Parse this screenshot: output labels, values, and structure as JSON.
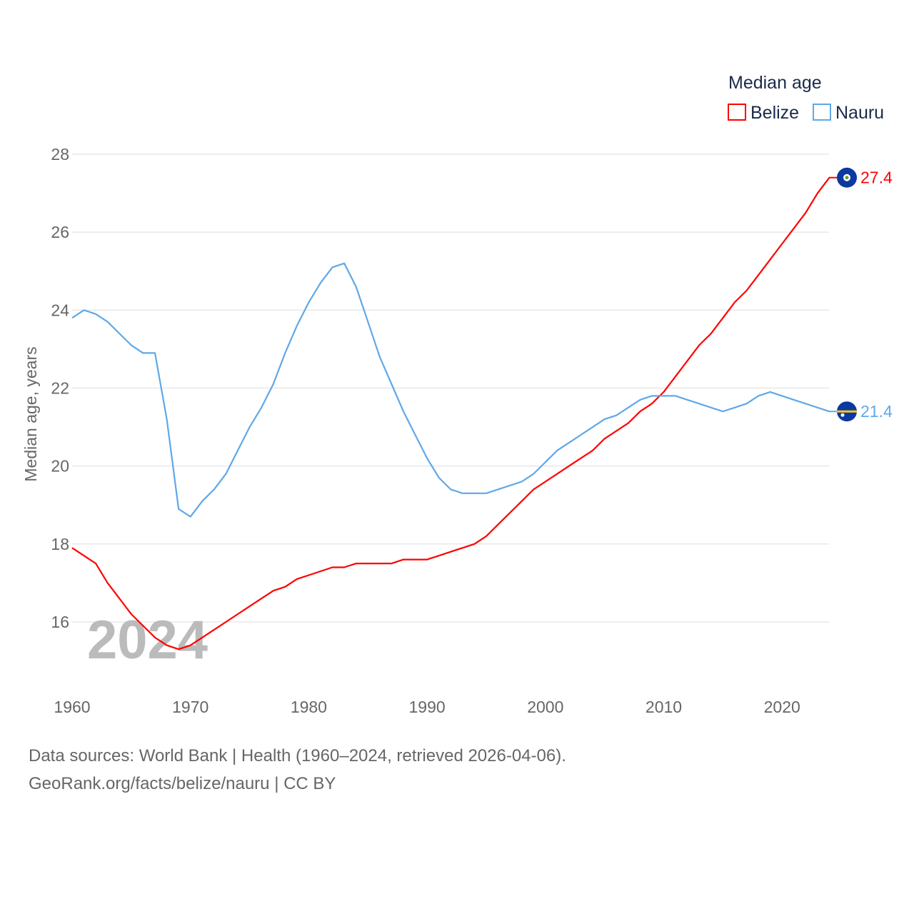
{
  "chart_data": {
    "type": "line",
    "title": "",
    "legend_title": "Median age",
    "legend_placement": "top-right",
    "xlabel": "",
    "ylabel": "Median age, years",
    "xlim": [
      1960,
      2024
    ],
    "ylim": [
      15,
      28
    ],
    "x_ticks": [
      1960,
      1970,
      1980,
      1990,
      2000,
      2010,
      2020
    ],
    "y_ticks": [
      16,
      18,
      20,
      22,
      24,
      26,
      28
    ],
    "grid": true,
    "watermark_year": "2024",
    "x": [
      1960,
      1961,
      1962,
      1963,
      1964,
      1965,
      1966,
      1967,
      1968,
      1969,
      1970,
      1971,
      1972,
      1973,
      1974,
      1975,
      1976,
      1977,
      1978,
      1979,
      1980,
      1981,
      1982,
      1983,
      1984,
      1985,
      1986,
      1987,
      1988,
      1989,
      1990,
      1991,
      1992,
      1993,
      1994,
      1995,
      1996,
      1997,
      1998,
      1999,
      2000,
      2001,
      2002,
      2003,
      2004,
      2005,
      2006,
      2007,
      2008,
      2009,
      2010,
      2011,
      2012,
      2013,
      2014,
      2015,
      2016,
      2017,
      2018,
      2019,
      2020,
      2021,
      2022,
      2023,
      2024
    ],
    "series": [
      {
        "name": "Belize",
        "color": "#ff0000",
        "end_label": "27.4",
        "values": [
          17.9,
          17.7,
          17.5,
          17.0,
          16.6,
          16.2,
          15.9,
          15.6,
          15.4,
          15.3,
          15.4,
          15.6,
          15.8,
          16.0,
          16.2,
          16.4,
          16.6,
          16.8,
          16.9,
          17.1,
          17.2,
          17.3,
          17.4,
          17.4,
          17.5,
          17.5,
          17.5,
          17.5,
          17.6,
          17.6,
          17.6,
          17.7,
          17.8,
          17.9,
          18.0,
          18.2,
          18.5,
          18.8,
          19.1,
          19.4,
          19.6,
          19.8,
          20.0,
          20.2,
          20.4,
          20.7,
          20.9,
          21.1,
          21.4,
          21.6,
          21.9,
          22.3,
          22.7,
          23.1,
          23.4,
          23.8,
          24.2,
          24.5,
          24.9,
          25.3,
          25.7,
          26.1,
          26.5,
          27.0,
          27.4
        ]
      },
      {
        "name": "Nauru",
        "color": "#5fa8e8",
        "end_label": "21.4",
        "values": [
          23.8,
          24.0,
          23.9,
          23.7,
          23.4,
          23.1,
          22.9,
          22.9,
          21.2,
          18.9,
          18.7,
          19.1,
          19.4,
          19.8,
          20.4,
          21.0,
          21.5,
          22.1,
          22.9,
          23.6,
          24.2,
          24.7,
          25.1,
          25.2,
          24.6,
          23.7,
          22.8,
          22.1,
          21.4,
          20.8,
          20.2,
          19.7,
          19.4,
          19.3,
          19.3,
          19.3,
          19.4,
          19.5,
          19.6,
          19.8,
          20.1,
          20.4,
          20.6,
          20.8,
          21.0,
          21.2,
          21.3,
          21.5,
          21.7,
          21.8,
          21.8,
          21.8,
          21.7,
          21.6,
          21.5,
          21.4,
          21.5,
          21.6,
          21.8,
          21.9,
          21.8,
          21.7,
          21.6,
          21.5,
          21.4
        ]
      }
    ]
  },
  "footer": {
    "line1": "Data sources: World Bank | Health (1960–2024, retrieved 2026-04-06).",
    "line2": "GeoRank.org/facts/belize/nauru | CC BY"
  }
}
